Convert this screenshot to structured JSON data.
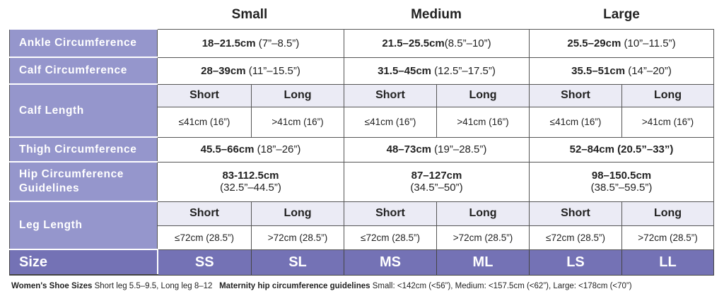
{
  "headers": [
    "Small",
    "Medium",
    "Large"
  ],
  "rows": {
    "ankle": {
      "label": "Ankle Circumference",
      "cells": [
        [
          "18–21.5cm",
          " (7”–8.5”)"
        ],
        [
          "21.5–25.5cm",
          "(8.5”–10”)"
        ],
        [
          "25.5–29cm",
          " (10”–11.5”)"
        ]
      ]
    },
    "calf": {
      "label": "Calf Circumference",
      "cells": [
        [
          "28–39cm",
          " (11”–15.5”)"
        ],
        [
          "31.5–45cm",
          " (12.5”–17.5”)"
        ],
        [
          "35.5–51cm",
          " (14”–20”)"
        ]
      ]
    },
    "calf_length": {
      "label": "Calf Length",
      "sub": [
        "Short",
        "Long",
        "Short",
        "Long",
        "Short",
        "Long"
      ],
      "values": [
        "≤41cm (16”)",
        ">41cm (16”)",
        "≤41cm (16”)",
        ">41cm (16”)",
        "≤41cm (16”)",
        ">41cm (16”)"
      ]
    },
    "thigh": {
      "label": "Thigh Circumference",
      "cells": [
        [
          "45.5–66cm",
          " (18”–26”)"
        ],
        [
          "48–73cm",
          " (19”–28.5”)"
        ],
        [
          "52–84cm",
          " (20.5”–33”)"
        ]
      ]
    },
    "hip": {
      "label": "Hip Circumference Guidelines",
      "cells": [
        [
          "83-112.5cm",
          "(32.5”–44.5”)"
        ],
        [
          "87–127cm",
          "(34.5”–50”)"
        ],
        [
          "98–150.5cm",
          "(38.5”–59.5”)"
        ]
      ]
    },
    "leg_length": {
      "label": "Leg Length",
      "sub": [
        "Short",
        "Long",
        "Short",
        "Long",
        "Short",
        "Long"
      ],
      "values": [
        "≤72cm (28.5”)",
        ">72cm (28.5”)",
        "≤72cm (28.5”)",
        ">72cm (28.5”)",
        "≤72cm (28.5”)",
        ">72cm (28.5”)"
      ]
    },
    "size": {
      "label": "Size",
      "values": [
        "SS",
        "SL",
        "MS",
        "ML",
        "LS",
        "LL"
      ]
    }
  },
  "footer": {
    "shoe_title": "Women's Shoe Sizes",
    "shoe_text": " Short leg 5.5–9.5, Long leg 8–12",
    "maternity_title": "Maternity hip circumference guidelines",
    "maternity_text": " Small: <142cm (<56”), Medium: <157.5cm (<62”), Large: <178cm (<70”)"
  },
  "colors": {
    "label_bg": "#9596cc",
    "size_bg": "#7472b5",
    "subheader_bg": "#ebebf5"
  }
}
